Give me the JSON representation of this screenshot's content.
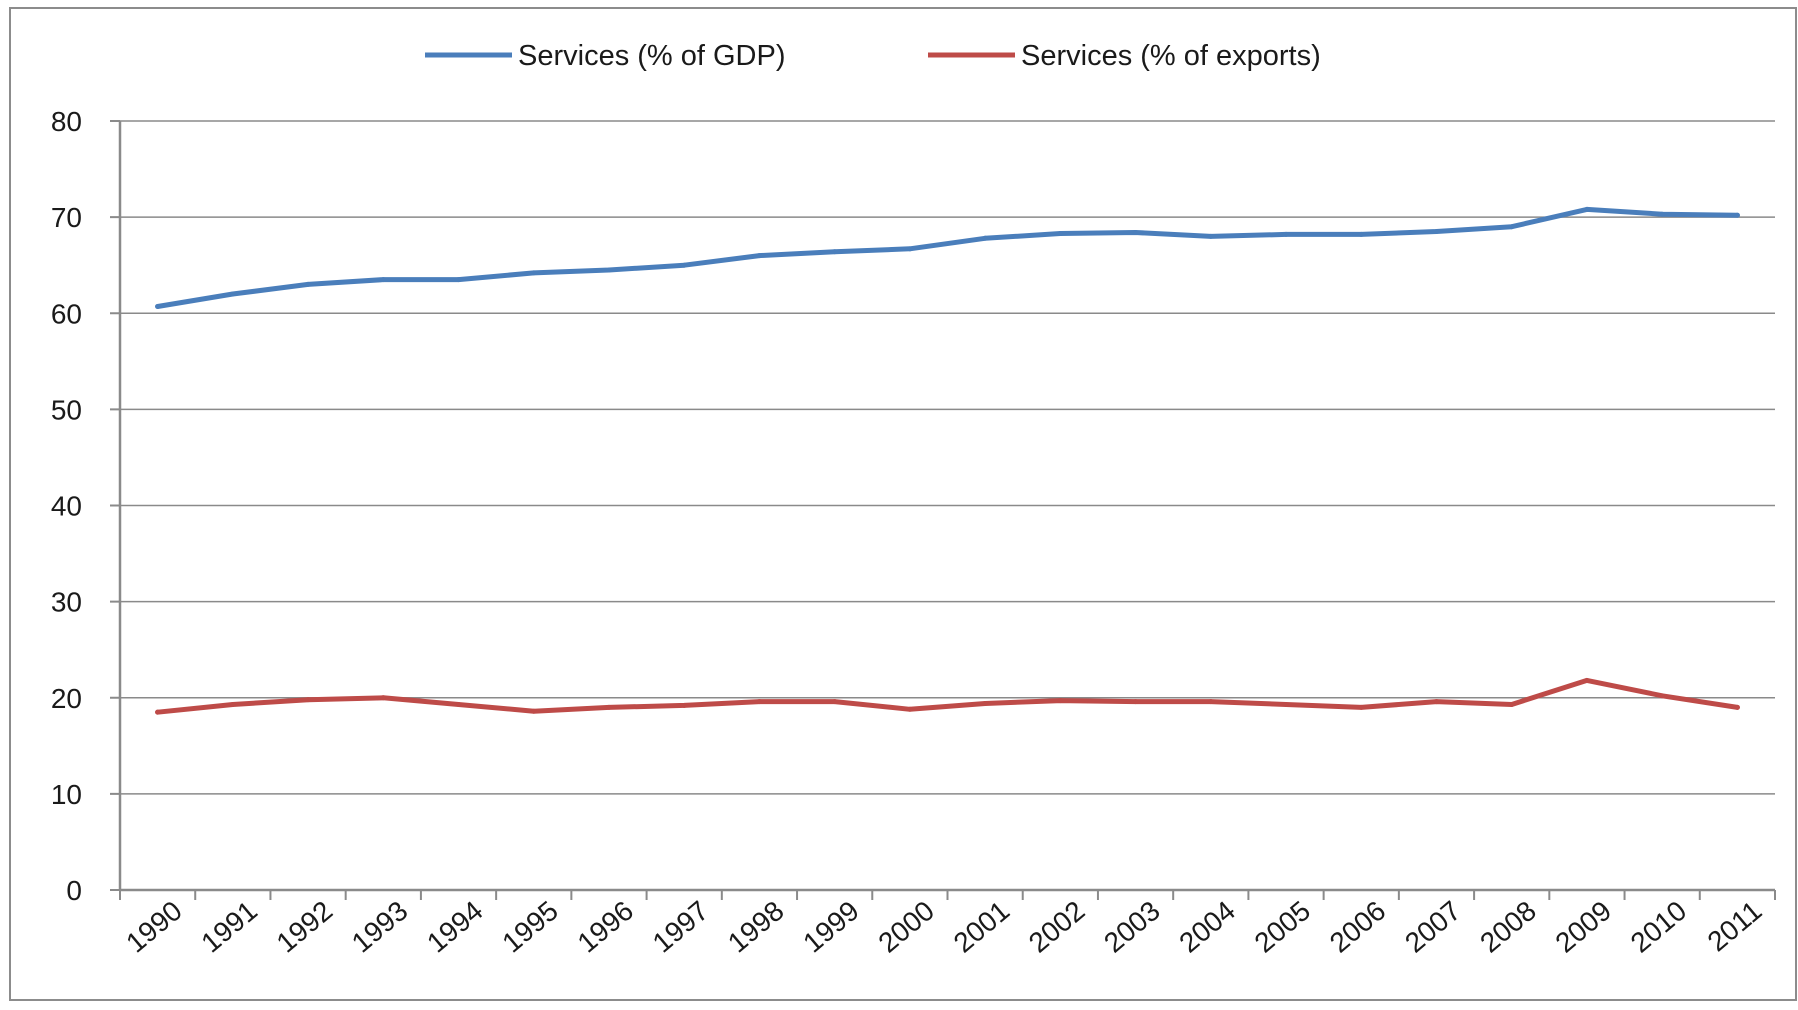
{
  "chart_data": {
    "type": "line",
    "categories": [
      "1990",
      "1991",
      "1992",
      "1993",
      "1994",
      "1995",
      "1996",
      "1997",
      "1998",
      "1999",
      "2000",
      "2001",
      "2002",
      "2003",
      "2004",
      "2005",
      "2006",
      "2007",
      "2008",
      "2009",
      "2010",
      "2011"
    ],
    "series": [
      {
        "name": "Services (% of GDP)",
        "color": "#4a7ebb",
        "values": [
          60.7,
          62.0,
          63.0,
          63.5,
          63.5,
          64.2,
          64.5,
          65.0,
          66.0,
          66.4,
          66.7,
          67.8,
          68.3,
          68.4,
          68.0,
          68.2,
          68.2,
          68.5,
          69.0,
          70.8,
          70.3,
          70.2
        ]
      },
      {
        "name": "Services (% of exports)",
        "color": "#be4b48",
        "values": [
          18.5,
          19.3,
          19.8,
          20.0,
          19.3,
          18.6,
          19.0,
          19.2,
          19.6,
          19.6,
          18.8,
          19.4,
          19.7,
          19.6,
          19.6,
          19.3,
          19.0,
          19.6,
          19.3,
          21.8,
          20.2,
          19.0
        ]
      }
    ],
    "yticks": [
      "0",
      "10",
      "20",
      "30",
      "40",
      "50",
      "60",
      "70",
      "80"
    ],
    "ylim": [
      0,
      80
    ],
    "grid": true,
    "legend_position": "top-center"
  }
}
